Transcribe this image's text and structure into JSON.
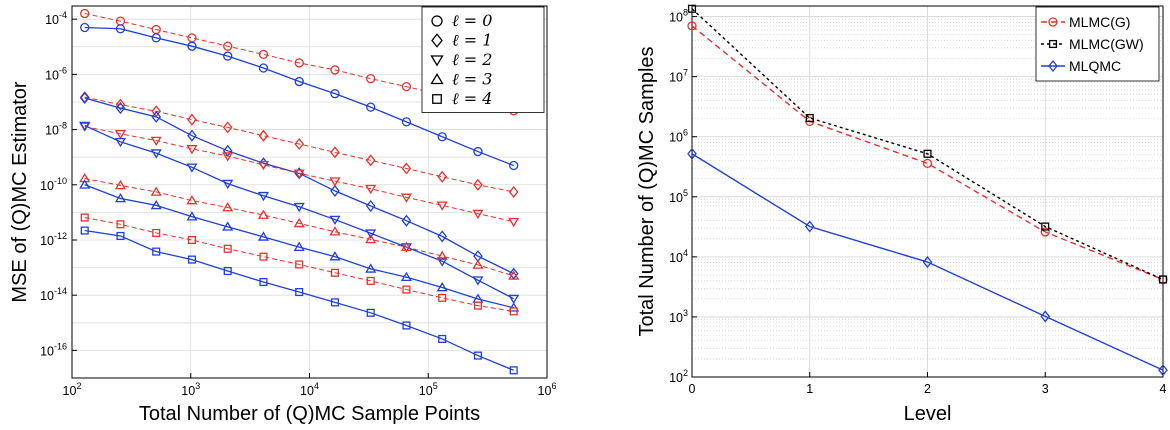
{
  "chart_data": [
    {
      "type": "line",
      "xlabel": "Total Number of (Q)MC Sample Points",
      "ylabel": "MSE of (Q)MC Estimator",
      "xscale": "log",
      "yscale": "log",
      "xlim": [
        100,
        1000000
      ],
      "ylim": [
        1e-17,
        0.0003
      ],
      "x_ticks": [
        {
          "base": "10",
          "exp": "2",
          "v": 100
        },
        {
          "base": "10",
          "exp": "3",
          "v": 1000
        },
        {
          "base": "10",
          "exp": "4",
          "v": 10000
        },
        {
          "base": "10",
          "exp": "5",
          "v": 100000
        },
        {
          "base": "10",
          "exp": "6",
          "v": 1000000
        }
      ],
      "y_ticks": [
        {
          "base": "10",
          "exp": "-16",
          "v": 1e-16
        },
        {
          "base": "10",
          "exp": "-14",
          "v": 1e-14
        },
        {
          "base": "10",
          "exp": "-12",
          "v": 1e-12
        },
        {
          "base": "10",
          "exp": "-10",
          "v": 1e-10
        },
        {
          "base": "10",
          "exp": "-8",
          "v": 1e-08
        },
        {
          "base": "10",
          "exp": "-6",
          "v": 1e-06
        },
        {
          "base": "10",
          "exp": "-4",
          "v": 0.0001
        }
      ],
      "grid": true,
      "legend_position": "top-right",
      "legend": [
        {
          "text": "ℓ = 0",
          "marker": "circle"
        },
        {
          "text": "ℓ = 1",
          "marker": "diamond"
        },
        {
          "text": "ℓ = 2",
          "marker": "triangle-down"
        },
        {
          "text": "ℓ = 3",
          "marker": "triangle-up"
        },
        {
          "text": "ℓ = 4",
          "marker": "square"
        }
      ],
      "x": [
        128,
        256,
        512,
        1024,
        2048,
        4096,
        8192,
        16384,
        32768,
        65536,
        131072,
        262144,
        524288
      ],
      "series": [
        {
          "level": 0,
          "method": "MC",
          "marker": "circle",
          "color": "#e8312a",
          "dash": true,
          "values": [
            0.00016,
            8.5e-05,
            4.2e-05,
            2.1e-05,
            1.05e-05,
            5.3e-06,
            2.6e-06,
            1.45e-06,
            7e-07,
            3.6e-07,
            1.8e-07,
            9.5e-08,
            4.8e-08
          ]
        },
        {
          "level": 0,
          "method": "QMC",
          "marker": "circle",
          "color": "#1f3fd8",
          "dash": false,
          "values": [
            5e-05,
            4.5e-05,
            2.1e-05,
            1.05e-05,
            4.6e-06,
            1.7e-06,
            5.5e-07,
            2e-07,
            6.5e-08,
            1.9e-08,
            5.5e-09,
            1.6e-09,
            5e-10
          ]
        },
        {
          "level": 1,
          "method": "MC",
          "marker": "diamond",
          "color": "#e8312a",
          "dash": true,
          "values": [
            1.5e-07,
            8e-08,
            4.6e-08,
            2.3e-08,
            1.2e-08,
            6e-09,
            3e-09,
            1.5e-09,
            7.7e-10,
            3.9e-10,
            1.95e-10,
            1e-10,
            5.5e-11
          ]
        },
        {
          "level": 1,
          "method": "QMC",
          "marker": "diamond",
          "color": "#1f3fd8",
          "dash": false,
          "values": [
            1.4e-07,
            6e-08,
            2.9e-08,
            6e-09,
            1.7e-09,
            6e-10,
            2.6e-10,
            6e-11,
            1.7e-11,
            5e-12,
            1.35e-12,
            2.6e-13,
            6e-14
          ]
        },
        {
          "level": 2,
          "method": "MC",
          "marker": "triangle-down",
          "color": "#e8312a",
          "dash": true,
          "values": [
            1.3e-08,
            7e-09,
            4e-09,
            2e-09,
            1.1e-09,
            5.3e-10,
            2.6e-10,
            1.35e-10,
            7.2e-11,
            3.5e-11,
            1.8e-11,
            9e-12,
            4.6e-12
          ]
        },
        {
          "level": 2,
          "method": "QMC",
          "marker": "triangle-down",
          "color": "#1f3fd8",
          "dash": false,
          "values": [
            1.4e-08,
            3.6e-09,
            1.4e-09,
            4.3e-10,
            1.1e-10,
            4e-11,
            1.6e-11,
            5.5e-12,
            1.75e-12,
            5.5e-13,
            1.7e-13,
            3.5e-14,
            7.5e-15
          ]
        },
        {
          "level": 3,
          "method": "MC",
          "marker": "triangle-up",
          "color": "#e8312a",
          "dash": true,
          "values": [
            1.7e-10,
            9.5e-11,
            5.5e-11,
            2.7e-11,
            1.5e-11,
            8e-12,
            4e-12,
            2e-12,
            1.05e-12,
            5.5e-13,
            2.6e-13,
            1.25e-13,
            5e-14
          ]
        },
        {
          "level": 3,
          "method": "QMC",
          "marker": "triangle-up",
          "color": "#1f3fd8",
          "dash": false,
          "values": [
            1e-10,
            3.2e-11,
            1.8e-11,
            7e-12,
            3e-12,
            1.3e-12,
            5.5e-13,
            2.5e-13,
            9e-14,
            4.5e-14,
            1.9e-14,
            7.3e-15,
            3.5e-15
          ]
        },
        {
          "level": 4,
          "method": "MC",
          "marker": "square",
          "color": "#e8312a",
          "dash": true,
          "values": [
            6.5e-12,
            3.7e-12,
            1.8e-12,
            1e-12,
            4.8e-13,
            2.5e-13,
            1.3e-13,
            6.5e-14,
            3.3e-14,
            1.6e-14,
            8e-15,
            4.2e-15,
            2.6e-15
          ]
        },
        {
          "level": 4,
          "method": "QMC",
          "marker": "square",
          "color": "#1f3fd8",
          "dash": false,
          "values": [
            2.2e-12,
            1.4e-12,
            3.8e-13,
            1.95e-13,
            7.5e-14,
            3e-14,
            1.3e-14,
            5.5e-15,
            2.3e-15,
            8e-16,
            2.6e-16,
            6.5e-17,
            1.9e-17
          ]
        }
      ]
    },
    {
      "type": "line",
      "xlabel": "Level",
      "ylabel": "Total Number of (Q)MC Samples",
      "yscale": "log",
      "xlim": [
        0,
        4
      ],
      "ylim": [
        100,
        150000000
      ],
      "x_ticks": [
        {
          "label": "0",
          "v": 0
        },
        {
          "label": "1",
          "v": 1
        },
        {
          "label": "2",
          "v": 2
        },
        {
          "label": "3",
          "v": 3
        },
        {
          "label": "4",
          "v": 4
        }
      ],
      "y_ticks": [
        {
          "base": "10",
          "exp": "2",
          "v": 100
        },
        {
          "base": "10",
          "exp": "3",
          "v": 1000
        },
        {
          "base": "10",
          "exp": "4",
          "v": 10000
        },
        {
          "base": "10",
          "exp": "5",
          "v": 100000
        },
        {
          "base": "10",
          "exp": "6",
          "v": 1000000
        },
        {
          "base": "10",
          "exp": "7",
          "v": 10000000
        },
        {
          "base": "10",
          "exp": "8",
          "v": 100000000
        }
      ],
      "grid": true,
      "legend_position": "top-right",
      "x": [
        0,
        1,
        2,
        3,
        4
      ],
      "series": [
        {
          "name": "MLMC(G)",
          "marker": "circle",
          "color": "#e8312a",
          "dash": "6,4",
          "values": [
            70000000,
            1800000,
            360000,
            26000,
            4200
          ]
        },
        {
          "name": "MLMC(GW)",
          "marker": "square",
          "color": "#000000",
          "dash": "3,3",
          "values": [
            135000000,
            2050000,
            520000,
            32000,
            4200
          ]
        },
        {
          "name": "MLQMC",
          "marker": "diamond",
          "color": "#1f3fd8",
          "dash": "",
          "values": [
            520000,
            32000,
            8200,
            1020,
            130
          ]
        }
      ]
    }
  ]
}
